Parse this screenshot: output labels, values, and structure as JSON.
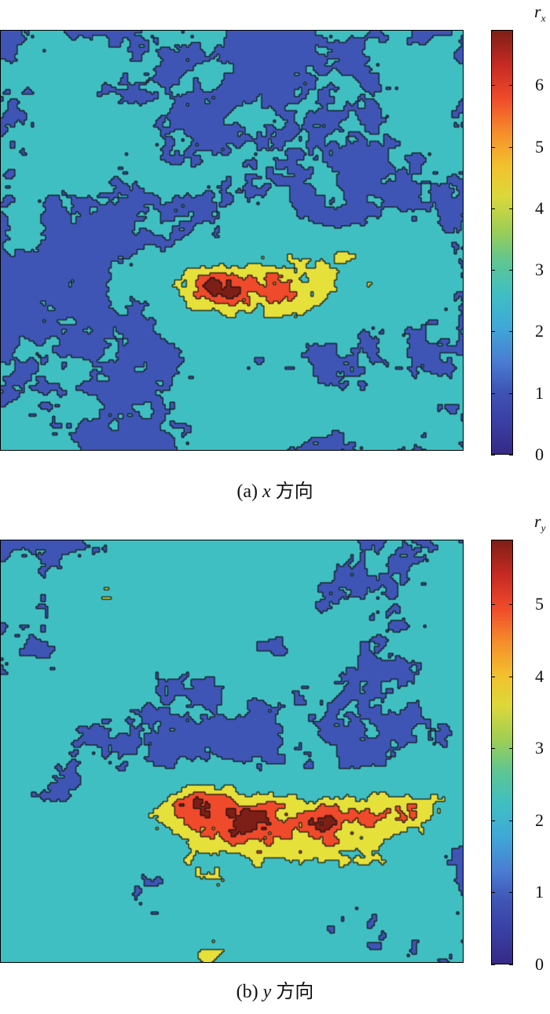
{
  "figure": {
    "panels": [
      {
        "caption_prefix": "(a)",
        "caption_var": "x",
        "caption_dir": "方向",
        "colorbar_symbol": "r",
        "colorbar_subscript": "x",
        "colorbar_ticks": [
          "0",
          "1",
          "2",
          "3",
          "4",
          "5",
          "6"
        ],
        "colorbar_range": [
          0,
          6.9
        ]
      },
      {
        "caption_prefix": "(b)",
        "caption_var": "y",
        "caption_dir": "方向",
        "colorbar_symbol": "r",
        "colorbar_subscript": "y",
        "colorbar_ticks": [
          "0",
          "1",
          "2",
          "3",
          "4",
          "5"
        ],
        "colorbar_range": [
          0,
          5.9
        ]
      }
    ]
  },
  "chart_data": [
    {
      "type": "heatmap",
      "colorbar_label": "r_x",
      "zlim": [
        0,
        6.9
      ],
      "colormap": "parula-jet",
      "contour_levels": [
        1,
        2,
        3,
        4,
        5
      ],
      "dominant_values": "mostly 1–3, with 4–6 bands along a diagonal central zone"
    },
    {
      "type": "heatmap",
      "colorbar_label": "r_y",
      "zlim": [
        0,
        5.9
      ],
      "colormap": "parula-jet",
      "contour_levels": [
        1,
        2,
        3,
        4,
        5
      ],
      "dominant_values": "mostly 1–3, with 4–5 bands in a central-lower zone"
    }
  ],
  "colors": {
    "level_0": "#352a87",
    "level_1": "#3f55b5",
    "level_2": "#40bfc2",
    "level_3": "#62c3a0",
    "level_4": "#e6e03a",
    "level_5": "#ef4a2b",
    "level_6": "#7d1f17"
  }
}
